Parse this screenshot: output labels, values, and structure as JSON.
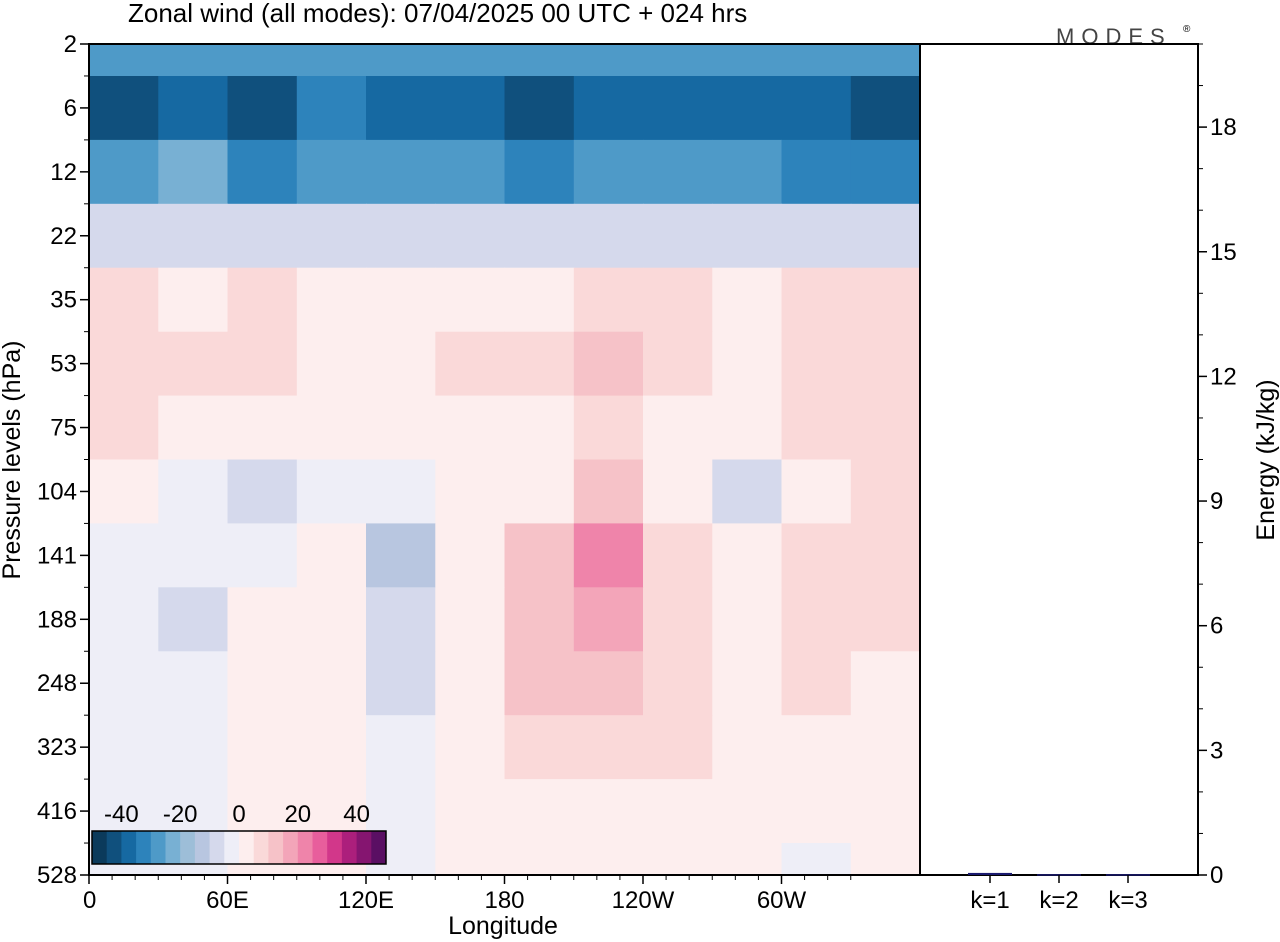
{
  "title": "Zonal wind (all modes):  07/04/2025  00 UTC  + 024 hrs",
  "brand": "MODES",
  "brand_mark": "®",
  "colors": {
    "neg": [
      "#0b3a5b",
      "#10507d",
      "#1669a2",
      "#2d83bb",
      "#4e9ac8",
      "#78b0d3",
      "#9dbed8",
      "#b8c6e0",
      "#d5d9ec",
      "#eeeef7"
    ],
    "pos": [
      "#fdeeee",
      "#fad9d9",
      "#f6c2c8",
      "#f3a5b9",
      "#ef84aa",
      "#e85e9c",
      "#d2378a",
      "#ac1f7c",
      "#851570",
      "#5a0f63"
    ],
    "frame": "#000000"
  },
  "chart_data": [
    {
      "type": "heatmap",
      "title": "Zonal wind (all modes):  07/04/2025  00 UTC  + 024 hrs",
      "xlabel": "Longitude",
      "ylabel": "Pressure levels (hPa)",
      "x_ticks": [
        "0",
        "60E",
        "120E",
        "180",
        "120W",
        "60W"
      ],
      "x_tick_values": [
        0,
        60,
        120,
        180,
        240,
        300
      ],
      "xlim": [
        0,
        360
      ],
      "y_ticks": [
        "2",
        "6",
        "12",
        "22",
        "35",
        "53",
        "75",
        "104",
        "141",
        "188",
        "248",
        "323",
        "416",
        "528"
      ],
      "y_axis": "pressure levels, top to bottom",
      "colorbar": {
        "tick_labels": [
          "-40",
          "-20",
          "0",
          "20",
          "40"
        ],
        "range": [
          -50,
          50
        ],
        "step": 5
      },
      "levels": [
        "2",
        "6",
        "12",
        "22",
        "35",
        "53",
        "75",
        "104",
        "141",
        "188",
        "248",
        "323",
        "416",
        "528"
      ],
      "longitudes": [
        0,
        30,
        60,
        90,
        120,
        150,
        180,
        210,
        240,
        270,
        300,
        330
      ],
      "values": [
        [
          -30,
          -30,
          -30,
          -30,
          -30,
          -30,
          -30,
          -30,
          -30,
          -30,
          -30,
          -30
        ],
        [
          -42,
          -40,
          -42,
          -35,
          -40,
          -40,
          -42,
          -38,
          -36,
          -38,
          -40,
          -42
        ],
        [
          -30,
          -25,
          -32,
          -28,
          -30,
          -30,
          -32,
          -28,
          -26,
          -30,
          -32,
          -34
        ],
        [
          -8,
          -6,
          -8,
          -7,
          -8,
          -8,
          -8,
          -7,
          -6,
          -8,
          -8,
          -10
        ],
        [
          6,
          3,
          6,
          4,
          3,
          3,
          3,
          7,
          6,
          3,
          6,
          5
        ],
        [
          7,
          5,
          8,
          4,
          2,
          6,
          5,
          10,
          9,
          4,
          6,
          8
        ],
        [
          6,
          3,
          2,
          1,
          2,
          3,
          4,
          5,
          4,
          1,
          5,
          6
        ],
        [
          2,
          -3,
          -8,
          -3,
          -4,
          1,
          3,
          12,
          4,
          -6,
          4,
          7
        ],
        [
          -2,
          -5,
          -4,
          2,
          -12,
          2,
          10,
          20,
          8,
          3,
          8,
          9
        ],
        [
          -3,
          -6,
          1,
          1,
          -8,
          1,
          12,
          16,
          7,
          3,
          6,
          5
        ],
        [
          -2,
          -5,
          1,
          1,
          -7,
          1,
          10,
          12,
          8,
          3,
          5,
          4
        ],
        [
          -1,
          -4,
          1,
          1,
          -5,
          1,
          7,
          9,
          5,
          2,
          3,
          2
        ],
        [
          -1,
          -2,
          1,
          1,
          -3,
          1,
          3,
          3,
          2,
          1,
          1,
          1
        ],
        [
          -1,
          -1,
          1,
          1,
          -2,
          1,
          1,
          2,
          1,
          1,
          -1,
          1
        ]
      ]
    },
    {
      "type": "bar",
      "categories": [
        "k=1",
        "k=2",
        "k=3"
      ],
      "values": [
        0.05,
        0.02,
        0.02
      ],
      "ylabel": "Energy (kJ/kg)",
      "y_ticks": [
        0,
        3,
        6,
        9,
        12,
        15,
        18
      ],
      "ylim": [
        0,
        20
      ],
      "bar_color": "#1a1a6e"
    }
  ]
}
